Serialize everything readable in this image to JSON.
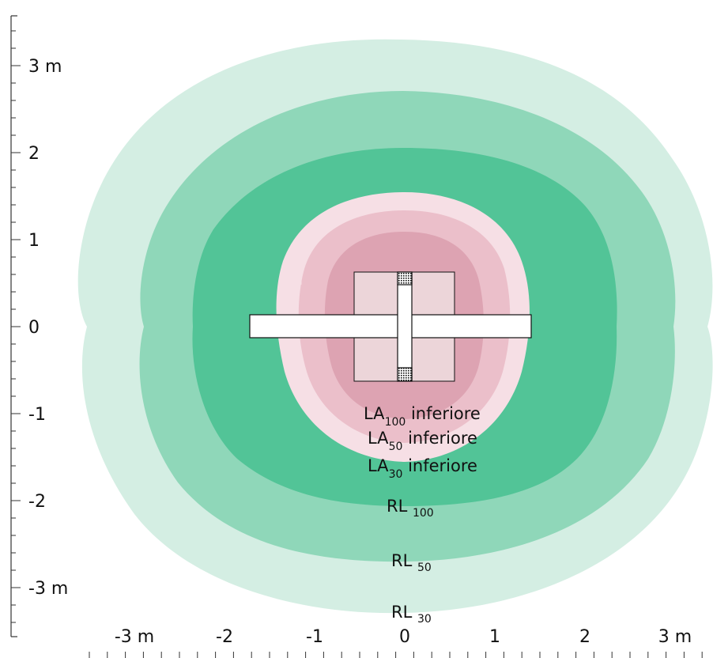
{
  "axes": {
    "y_ticks": [
      {
        "value": 3,
        "label": "3 m"
      },
      {
        "value": 2,
        "label": "2"
      },
      {
        "value": 1,
        "label": "1"
      },
      {
        "value": 0,
        "label": "0"
      },
      {
        "value": -1,
        "label": "-1"
      },
      {
        "value": -2,
        "label": "-2"
      },
      {
        "value": -3,
        "label": "-3 m"
      }
    ],
    "x_ticks": [
      {
        "value": -3,
        "label": "-3 m"
      },
      {
        "value": -2,
        "label": "-2"
      },
      {
        "value": -1,
        "label": "-1"
      },
      {
        "value": 0,
        "label": "0"
      },
      {
        "value": 1,
        "label": "1"
      },
      {
        "value": 2,
        "label": "2"
      },
      {
        "value": 3,
        "label": "3 m"
      }
    ],
    "minor_ticks_per_unit": 5
  },
  "colors": {
    "rl_30": "#d4eee3",
    "rl_50": "#8fd7b9",
    "rl_100": "#52c497",
    "la_30": "#f6dfe5",
    "la_50": "#ebbfca",
    "la_100": "#dda3b2",
    "device_panel": "#ecd5d9",
    "bar": "#ffffff",
    "outline": "#111111",
    "axis": "#333333"
  },
  "labels": {
    "la100": {
      "main": "LA",
      "sub": "100",
      "suffix": " inferiore"
    },
    "la50": {
      "main": "LA",
      "sub": "50",
      "suffix": " inferiore"
    },
    "la30": {
      "main": "LA",
      "sub": "30",
      "suffix": " inferiore"
    },
    "rl100": {
      "main": "RL ",
      "sub": "100"
    },
    "rl50": {
      "main": "RL ",
      "sub": "50"
    },
    "rl30": {
      "main": "RL ",
      "sub": "30"
    }
  }
}
